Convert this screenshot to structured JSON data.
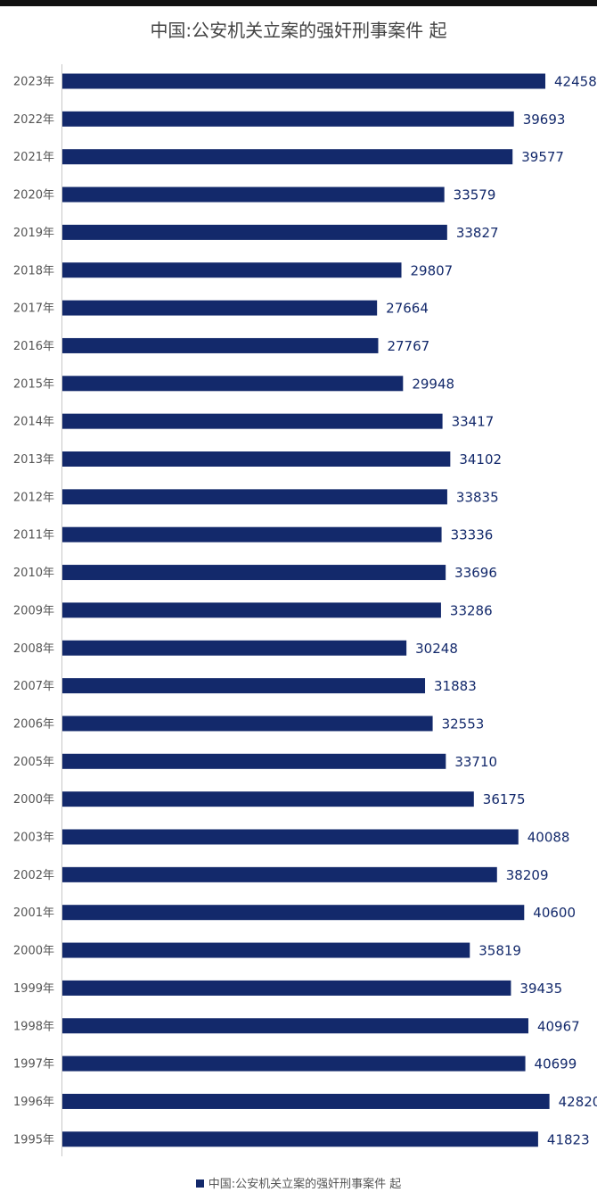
{
  "chart_data": {
    "type": "bar",
    "orientation": "horizontal",
    "title": "中国:公安机关立案的强奸刑事案件 起",
    "categories": [
      "2023年",
      "2022年",
      "2021年",
      "2020年",
      "2019年",
      "2018年",
      "2017年",
      "2016年",
      "2015年",
      "2014年",
      "2013年",
      "2012年",
      "2011年",
      "2010年",
      "2009年",
      "2008年",
      "2007年",
      "2006年",
      "2005年",
      "2000年",
      "2003年",
      "2002年",
      "2001年",
      "2000年",
      "1999年",
      "1998年",
      "1997年",
      "1996年",
      "1995年"
    ],
    "series": [
      {
        "name": "中国:公安机关立案的强奸刑事案件 起",
        "values": [
          42458,
          39693,
          39577,
          33579,
          33827,
          29807,
          27664,
          27767,
          29948,
          33417,
          34102,
          33835,
          33336,
          33696,
          33286,
          30248,
          31883,
          32553,
          33710,
          36175,
          40088,
          38209,
          40600,
          35819,
          39435,
          40967,
          40699,
          42820,
          41823
        ]
      }
    ],
    "xlim": [
      0,
      47000
    ],
    "data_labels": true,
    "legend_position": "bottom",
    "grid": false,
    "bar_color": "#13296b"
  }
}
